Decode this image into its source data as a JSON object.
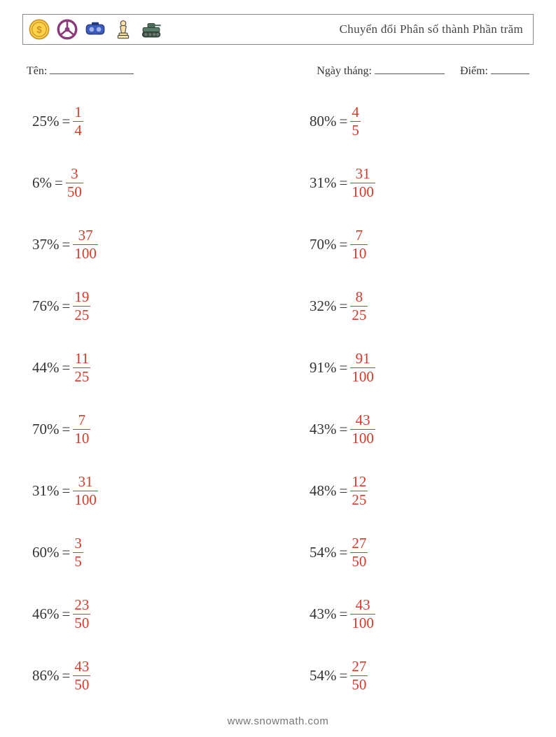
{
  "header": {
    "title": "Chuyển đổi Phân số thành Phần trăm",
    "icons": [
      "coin-icon",
      "steering-wheel-icon",
      "vr-goggles-icon",
      "chess-pawn-icon",
      "tank-icon"
    ]
  },
  "info": {
    "name_label": "Tên:",
    "date_label": "Ngày tháng:",
    "score_label": "Điểm:"
  },
  "colors": {
    "text": "#333333",
    "fraction": "#d63a2a",
    "border": "#888888",
    "background": "#ffffff",
    "footer": "#777777"
  },
  "typography": {
    "body_fontsize": 21,
    "header_fontsize": 17,
    "info_fontsize": 16,
    "footer_fontsize": 15
  },
  "layout": {
    "columns": 2,
    "rows": 10,
    "row_gap": 32
  },
  "problems": {
    "left": [
      {
        "pct": "25%",
        "num": "1",
        "den": "4"
      },
      {
        "pct": "6%",
        "num": "3",
        "den": "50"
      },
      {
        "pct": "37%",
        "num": "37",
        "den": "100"
      },
      {
        "pct": "76%",
        "num": "19",
        "den": "25"
      },
      {
        "pct": "44%",
        "num": "11",
        "den": "25"
      },
      {
        "pct": "70%",
        "num": "7",
        "den": "10"
      },
      {
        "pct": "31%",
        "num": "31",
        "den": "100"
      },
      {
        "pct": "60%",
        "num": "3",
        "den": "5"
      },
      {
        "pct": "46%",
        "num": "23",
        "den": "50"
      },
      {
        "pct": "86%",
        "num": "43",
        "den": "50"
      }
    ],
    "right": [
      {
        "pct": "80%",
        "num": "4",
        "den": "5"
      },
      {
        "pct": "31%",
        "num": "31",
        "den": "100"
      },
      {
        "pct": "70%",
        "num": "7",
        "den": "10"
      },
      {
        "pct": "32%",
        "num": "8",
        "den": "25"
      },
      {
        "pct": "91%",
        "num": "91",
        "den": "100"
      },
      {
        "pct": "43%",
        "num": "43",
        "den": "100"
      },
      {
        "pct": "48%",
        "num": "12",
        "den": "25"
      },
      {
        "pct": "54%",
        "num": "27",
        "den": "50"
      },
      {
        "pct": "43%",
        "num": "43",
        "den": "100"
      },
      {
        "pct": "54%",
        "num": "27",
        "den": "50"
      }
    ]
  },
  "footer": {
    "text": "www.snowmath.com"
  }
}
